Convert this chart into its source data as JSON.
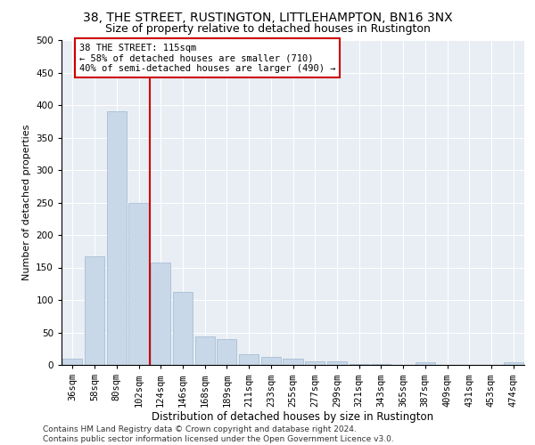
{
  "title": "38, THE STREET, RUSTINGTON, LITTLEHAMPTON, BN16 3NX",
  "subtitle": "Size of property relative to detached houses in Rustington",
  "xlabel": "Distribution of detached houses by size in Rustington",
  "ylabel": "Number of detached properties",
  "bar_color": "#c8d8e8",
  "bar_edge_color": "#a0b8d0",
  "background_color": "#e8eef4",
  "grid_color": "#ffffff",
  "categories": [
    "36sqm",
    "58sqm",
    "80sqm",
    "102sqm",
    "124sqm",
    "146sqm",
    "168sqm",
    "189sqm",
    "211sqm",
    "233sqm",
    "255sqm",
    "277sqm",
    "299sqm",
    "321sqm",
    "343sqm",
    "365sqm",
    "387sqm",
    "409sqm",
    "431sqm",
    "453sqm",
    "474sqm"
  ],
  "values": [
    10,
    167,
    390,
    250,
    157,
    113,
    44,
    40,
    17,
    13,
    9,
    6,
    5,
    2,
    2,
    0,
    4,
    0,
    0,
    0,
    4
  ],
  "ylim": [
    0,
    500
  ],
  "yticks": [
    0,
    50,
    100,
    150,
    200,
    250,
    300,
    350,
    400,
    450,
    500
  ],
  "vline_x": 3.5,
  "vline_color": "#cc0000",
  "annotation_text": "38 THE STREET: 115sqm\n← 58% of detached houses are smaller (710)\n40% of semi-detached houses are larger (490) →",
  "footnote": "Contains HM Land Registry data © Crown copyright and database right 2024.\nContains public sector information licensed under the Open Government Licence v3.0.",
  "title_fontsize": 10,
  "subtitle_fontsize": 9,
  "xlabel_fontsize": 8.5,
  "ylabel_fontsize": 8,
  "tick_fontsize": 7.5,
  "annot_fontsize": 7.5,
  "footnote_fontsize": 6.5
}
